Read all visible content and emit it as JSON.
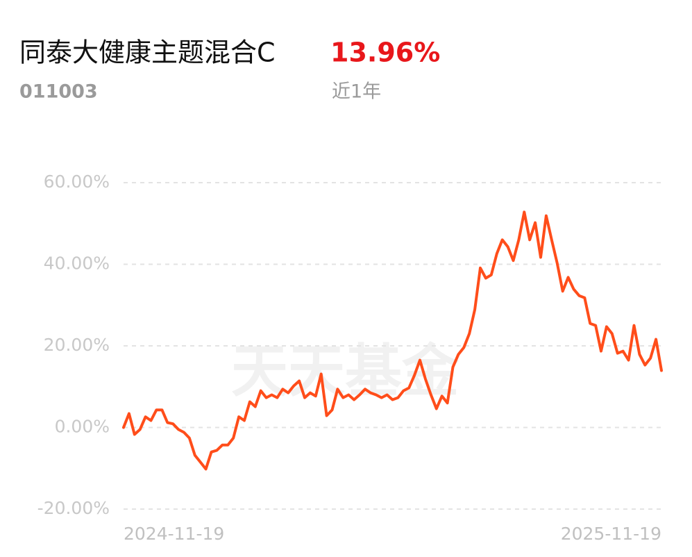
{
  "header": {
    "title": "同泰大健康主题混合C",
    "return": "13.96%",
    "code": "011003",
    "period": "近1年"
  },
  "chart_data": {
    "type": "line",
    "watermark": "天天基金",
    "categories": [
      "2024-11-19",
      null,
      null,
      null,
      null,
      null,
      null,
      null,
      null,
      null,
      null,
      null,
      null,
      null,
      null,
      null,
      null,
      null,
      null,
      null,
      null,
      null,
      null,
      null,
      null,
      null,
      null,
      null,
      null,
      null,
      null,
      null,
      null,
      null,
      null,
      null,
      null,
      null,
      null,
      null,
      null,
      null,
      null,
      null,
      null,
      null,
      null,
      null,
      null,
      null,
      null,
      null,
      null,
      null,
      null,
      null,
      null,
      null,
      null,
      null,
      null,
      null,
      null,
      null,
      null,
      null,
      null,
      null,
      null,
      null,
      null,
      null,
      null,
      null,
      null,
      null,
      null,
      null,
      null,
      null,
      null,
      null,
      null,
      null,
      null,
      null,
      null,
      null,
      null,
      null,
      null,
      null,
      null,
      null,
      null,
      null,
      null,
      null,
      "2025-11-19"
    ],
    "series": [
      {
        "color": "#ff4d1a",
        "values": [
          0,
          3.4,
          -1.7,
          -0.5,
          2.6,
          1.7,
          4.3,
          4.3,
          1.2,
          0.9,
          -0.5,
          -1.2,
          -2.6,
          -6.8,
          -8.5,
          -10.2,
          -6,
          -5.6,
          -4.3,
          -4.3,
          -2.6,
          2.6,
          1.7,
          6.3,
          5.1,
          9,
          7.3,
          8,
          7.3,
          9.4,
          8.5,
          10.2,
          11.4,
          7.3,
          8.5,
          7.7,
          13.1,
          2.9,
          4.3,
          9.4,
          7.3,
          8,
          6.8,
          8,
          9.4,
          8.5,
          8,
          7.3,
          8,
          6.8,
          7.3,
          9,
          9.7,
          12.8,
          16.5,
          11.9,
          8,
          4.6,
          7.7,
          6,
          14.8,
          17.9,
          19.6,
          23,
          28.9,
          39.1,
          36.6,
          37.4,
          42.6,
          46,
          44.3,
          40.9,
          46,
          52.8,
          46,
          50.2,
          41.7,
          51.9,
          46,
          40.3,
          33.4,
          36.8,
          33.9,
          32.3,
          31.8,
          25.5,
          25,
          18.7,
          24.7,
          23,
          18.2,
          18.7,
          16.5,
          25,
          17.9,
          15.3,
          17,
          21.6,
          13.96
        ]
      }
    ],
    "ylim": [
      -20,
      60
    ],
    "yticks": [
      {
        "value": -20,
        "label": "-20.00%"
      },
      {
        "value": 0,
        "label": "0.00%"
      },
      {
        "value": 20,
        "label": "20.00%"
      },
      {
        "value": 40,
        "label": "40.00%"
      },
      {
        "value": 60,
        "label": "60.00%"
      }
    ],
    "grid": true
  }
}
